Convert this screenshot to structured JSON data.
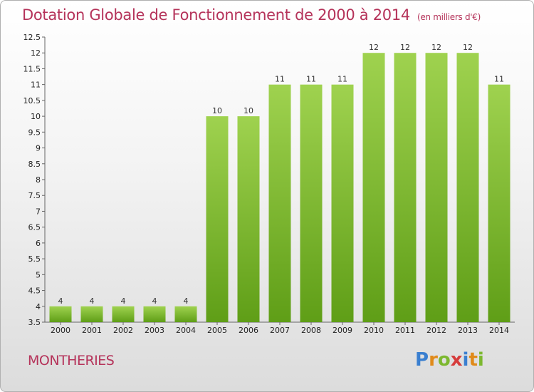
{
  "title": "Dotation Globale de Fonctionnement de 2000 à 2014",
  "unit": "(en milliers d'€)",
  "town": "MONTHERIES",
  "logo": {
    "letters": [
      "P",
      "r",
      "o",
      "x",
      "i",
      "t",
      "i"
    ],
    "colors": [
      "#3a7fd0",
      "#e08a1a",
      "#7cb82f",
      "#d63c3c",
      "#3a7fd0",
      "#e08a1a",
      "#7cb82f"
    ]
  },
  "chart_data": {
    "type": "bar",
    "title": "Dotation Globale de Fonctionnement de 2000 à 2014",
    "xlabel": "",
    "ylabel": "",
    "categories": [
      "2000",
      "2001",
      "2002",
      "2003",
      "2004",
      "2005",
      "2006",
      "2007",
      "2008",
      "2009",
      "2010",
      "2011",
      "2012",
      "2013",
      "2014"
    ],
    "values": [
      4,
      4,
      4,
      4,
      4,
      10,
      10,
      11,
      11,
      11,
      12,
      12,
      12,
      12,
      11
    ],
    "value_labels": [
      "4",
      "4",
      "4",
      "4",
      "4",
      "10",
      "10",
      "11",
      "11",
      "11",
      "12",
      "12",
      "12",
      "12",
      "11"
    ],
    "ylim": [
      3.5,
      12.5
    ],
    "yticks": [
      "3.5",
      "4",
      "4.5",
      "5",
      "5.5",
      "6",
      "6.5",
      "7",
      "7.5",
      "8",
      "8.5",
      "9",
      "9.5",
      "10",
      "10.5",
      "11",
      "11.5",
      "12",
      "12.5"
    ],
    "bar_color": "#8ec63f",
    "grid": false
  }
}
